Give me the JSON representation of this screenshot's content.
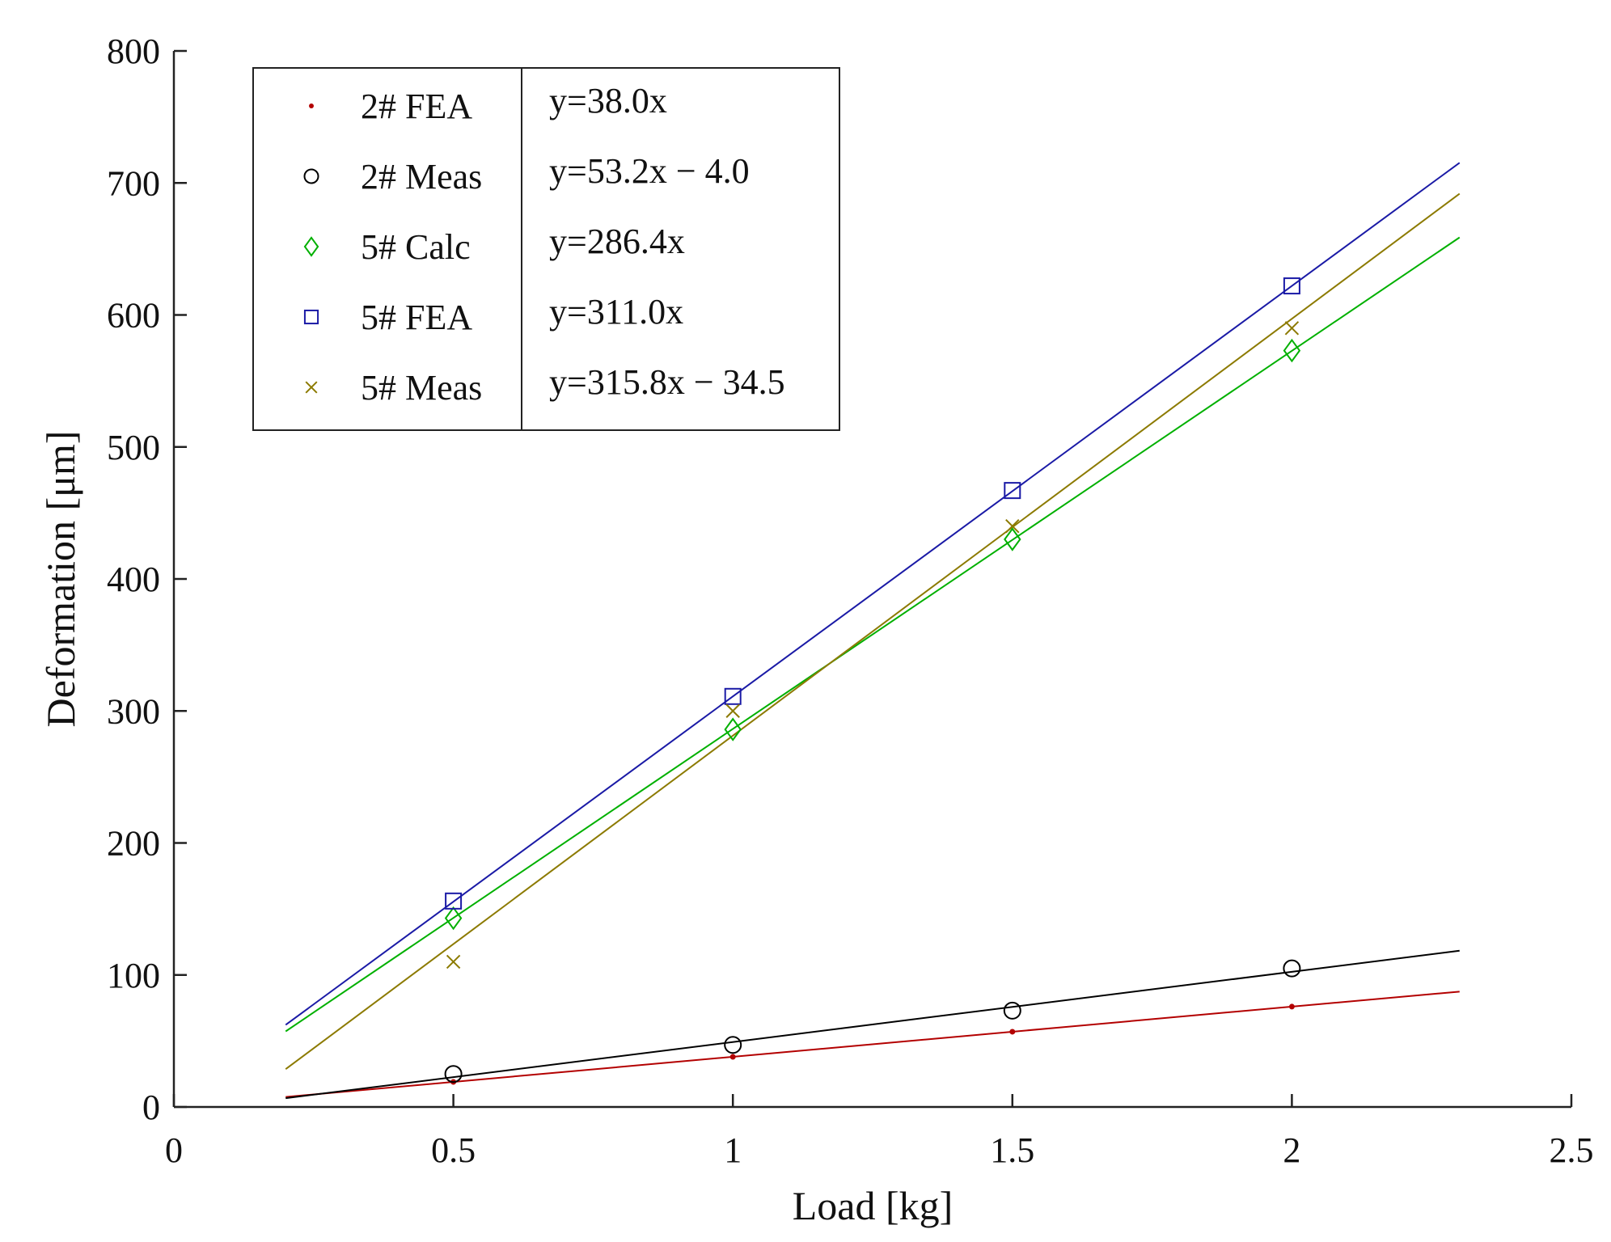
{
  "chart_data": {
    "type": "scatter",
    "title": "",
    "xlabel": "Load [kg]",
    "ylabel": "Deformation [μm]",
    "xlim": [
      0,
      2.5
    ],
    "ylim": [
      0,
      800
    ],
    "xticks": [
      0,
      0.5,
      1,
      1.5,
      2,
      2.5
    ],
    "xtick_labels": [
      "0",
      "0.5",
      "1",
      "1.5",
      "2",
      "2.5"
    ],
    "yticks": [
      0,
      100,
      200,
      300,
      400,
      500,
      600,
      700,
      800
    ],
    "ytick_labels": [
      "0",
      "100",
      "200",
      "300",
      "400",
      "500",
      "600",
      "700",
      "800"
    ],
    "grid": false,
    "legend_position": "top-left",
    "fit_range": [
      0.2,
      2.3
    ],
    "series": [
      {
        "name": "2# FEA",
        "marker": "dot",
        "color": "#b30000",
        "x": [
          0.5,
          1,
          1.5,
          2
        ],
        "y": [
          19,
          38,
          57,
          76
        ],
        "fit": {
          "slope": 38.0,
          "intercept": 0,
          "label": "y=38.0x"
        }
      },
      {
        "name": "2# Meas",
        "marker": "circle",
        "color": "#000000",
        "x": [
          0.5,
          1,
          1.5,
          2
        ],
        "y": [
          25,
          47,
          73,
          105
        ],
        "fit": {
          "slope": 53.2,
          "intercept": -4.0,
          "label": "y=53.2x − 4.0"
        }
      },
      {
        "name": "5# Calc",
        "marker": "diamond",
        "color": "#00b000",
        "x": [
          0.5,
          1,
          1.5,
          2
        ],
        "y": [
          143,
          286,
          430,
          573
        ],
        "fit": {
          "slope": 286.4,
          "intercept": 0,
          "label": "y=286.4x"
        }
      },
      {
        "name": "5# FEA",
        "marker": "square",
        "color": "#1a1aa6",
        "x": [
          0.5,
          1,
          1.5,
          2
        ],
        "y": [
          156,
          311,
          467,
          622
        ],
        "fit": {
          "slope": 311.0,
          "intercept": 0,
          "label": "y=311.0x"
        }
      },
      {
        "name": "5# Meas",
        "marker": "x",
        "color": "#8c7a00",
        "x": [
          0.5,
          1,
          1.5,
          2
        ],
        "y": [
          110,
          300,
          440,
          590
        ],
        "fit": {
          "slope": 315.8,
          "intercept": -34.5,
          "label": "y=315.8x − 34.5"
        }
      }
    ]
  }
}
